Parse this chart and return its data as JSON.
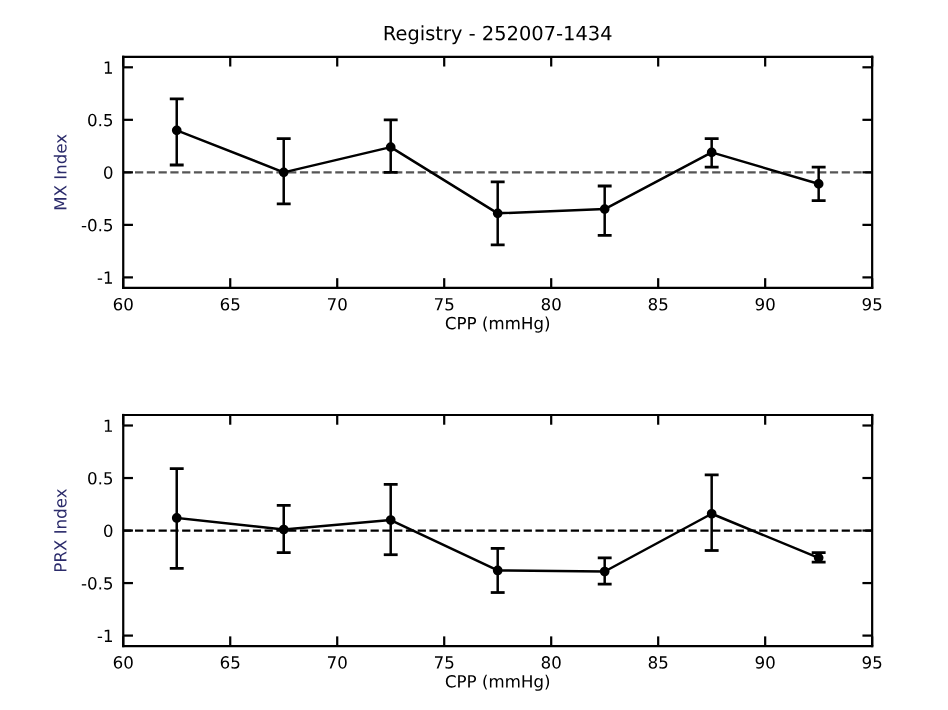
{
  "chart_data": [
    {
      "type": "line",
      "title": "Registry - 252007-1434",
      "xlabel": "CPP (mmHg)",
      "ylabel": "MX Index",
      "x": [
        62.5,
        67.5,
        72.5,
        77.5,
        82.5,
        87.5,
        92.5
      ],
      "series": [
        {
          "color": "#000000",
          "values": [
            0.4,
            0.0,
            0.24,
            -0.39,
            -0.35,
            0.19,
            -0.11
          ],
          "errors": [
            [
              0.07,
              0.7
            ],
            [
              -0.3,
              0.32
            ],
            [
              0.0,
              0.5
            ],
            [
              -0.69,
              -0.09
            ],
            [
              -0.6,
              -0.13
            ],
            [
              0.05,
              0.32
            ],
            [
              -0.27,
              0.05
            ]
          ]
        }
      ],
      "xlim": [
        60,
        95
      ],
      "xticks": [
        60,
        65,
        70,
        75,
        80,
        85,
        90,
        95
      ],
      "ylim": [
        -1.1,
        1.1
      ],
      "yticks": [
        -1,
        -0.5,
        0,
        0.5,
        1
      ],
      "marker": "circle",
      "grid": false,
      "ref_lines": [
        {
          "axis": "y",
          "value": 0,
          "color": "#555555",
          "line_style": "dashed"
        }
      ]
    },
    {
      "type": "line",
      "xlabel": "CPP (mmHg)",
      "ylabel": "PRX Index",
      "x": [
        62.5,
        67.5,
        72.5,
        77.5,
        82.5,
        87.5,
        92.5
      ],
      "series": [
        {
          "color": "#000000",
          "values": [
            0.12,
            0.01,
            0.1,
            -0.38,
            -0.39,
            0.16,
            -0.26
          ],
          "errors": [
            [
              -0.36,
              0.59
            ],
            [
              -0.21,
              0.24
            ],
            [
              -0.23,
              0.44
            ],
            [
              -0.59,
              -0.17
            ],
            [
              -0.51,
              -0.26
            ],
            [
              -0.19,
              0.53
            ],
            [
              -0.3,
              -0.21
            ]
          ]
        }
      ],
      "xlim": [
        60,
        95
      ],
      "xticks": [
        60,
        65,
        70,
        75,
        80,
        85,
        90,
        95
      ],
      "ylim": [
        -1.1,
        1.1
      ],
      "yticks": [
        -1,
        -0.5,
        0,
        0.5,
        1
      ],
      "marker": "circle",
      "grid": false,
      "ref_lines": [
        {
          "axis": "y",
          "value": 0,
          "color": "#000000",
          "line_style": "dashed"
        }
      ]
    }
  ]
}
